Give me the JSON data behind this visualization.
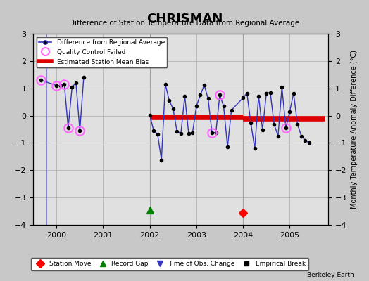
{
  "title": "CHRISMAN",
  "subtitle": "Difference of Station Temperature Data from Regional Average",
  "ylabel": "Monthly Temperature Anomaly Difference (°C)",
  "credit": "Berkeley Earth",
  "background_color": "#c8c8c8",
  "plot_bg_color": "#e0e0e0",
  "xlim": [
    1999.5,
    2005.83
  ],
  "ylim": [
    -4,
    3
  ],
  "yticks": [
    -4,
    -3,
    -2,
    -1,
    0,
    1,
    2,
    3
  ],
  "xtick_years": [
    2000,
    2001,
    2002,
    2003,
    2004,
    2005
  ],
  "main_line_color": "#3333bb",
  "main_marker_color": "#000000",
  "qc_color": "#ff66ff",
  "bias_color": "#dd0000",
  "grid_color": "#aaaaaa",
  "vline_color": "#8888cc",
  "seg1_x": [
    1999.667,
    2000.0,
    2000.083,
    2000.167,
    2000.25,
    2000.333,
    2000.417,
    2000.5,
    2000.583
  ],
  "seg1_y": [
    1.3,
    1.1,
    1.1,
    1.15,
    -0.45,
    1.05,
    1.2,
    -0.55,
    1.4
  ],
  "seg2_x": [
    2002.0,
    2002.083,
    2002.167,
    2002.25,
    2002.333,
    2002.417,
    2002.5,
    2002.583,
    2002.667,
    2002.75,
    2002.833,
    2002.917,
    2003.0,
    2003.083,
    2003.167,
    2003.25,
    2003.333,
    2003.417,
    2003.5,
    2003.583,
    2003.667,
    2003.75,
    2004.0,
    2004.083,
    2004.167,
    2004.25,
    2004.333,
    2004.417,
    2004.5,
    2004.583,
    2004.667,
    2004.75,
    2004.833,
    2004.917,
    2005.0,
    2005.083,
    2005.167,
    2005.25,
    2005.333,
    2005.417
  ],
  "seg2_y": [
    0.02,
    -0.55,
    -0.68,
    -1.62,
    1.15,
    0.55,
    0.25,
    -0.58,
    -0.65,
    0.72,
    -0.65,
    -0.62,
    0.35,
    0.75,
    1.12,
    0.62,
    -0.62,
    -0.62,
    0.75,
    0.35,
    -1.15,
    0.2,
    0.65,
    0.82,
    -0.28,
    -1.2,
    0.72,
    -0.52,
    0.82,
    0.85,
    -0.32,
    -0.75,
    1.05,
    -0.45,
    0.15,
    0.82,
    -0.32,
    -0.75,
    -0.9,
    -1.0
  ],
  "qc_failed_x": [
    1999.667,
    2000.0,
    2000.167,
    2000.25,
    2000.5,
    2003.333,
    2003.5,
    2004.917
  ],
  "qc_failed_y": [
    1.3,
    1.1,
    1.15,
    -0.45,
    -0.55,
    -0.62,
    0.75,
    -0.45
  ],
  "vline1_x": 2002.0,
  "vline2_x": 2004.0,
  "vline0_x": 1999.79,
  "bias1_x_start": 2002.0,
  "bias1_x_end": 2004.0,
  "bias1_y": -0.05,
  "bias2_x_start": 2004.0,
  "bias2_x_end": 2005.75,
  "bias2_y": -0.12,
  "station_move_x": 2004.0,
  "station_move_y": -3.55,
  "record_gap_x": 2002.0,
  "record_gap_y": -3.45
}
